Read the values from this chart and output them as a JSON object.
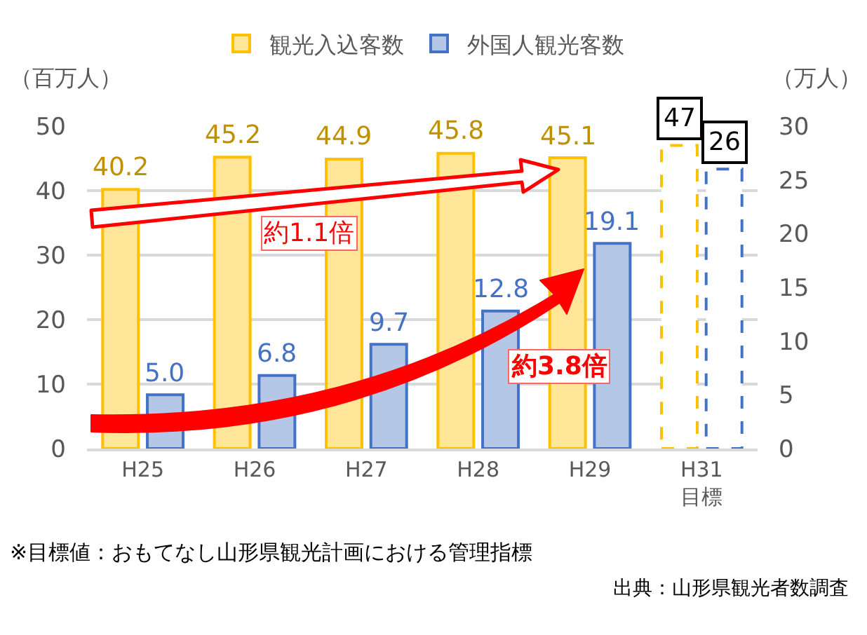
{
  "chart_data": {
    "type": "bar",
    "categories": [
      "H25",
      "H26",
      "H27",
      "H28",
      "H29",
      "H31\n目標"
    ],
    "series": [
      {
        "name": "観光入込客数",
        "colors": [
          "#ffe699",
          "#ffe699",
          "#ffe699",
          "#ffe699",
          "#ffe699",
          "#ffffff"
        ],
        "values": [
          40.2,
          45.2,
          44.9,
          45.8,
          45.1,
          47
        ],
        "value_labels": [
          "40.2",
          "45.2",
          "44.9",
          "45.8",
          "45.1",
          "47"
        ]
      },
      {
        "name": "外国人観光客数",
        "colors": [
          "#b4c7e7",
          "#b4c7e7",
          "#b4c7e7",
          "#b4c7e7",
          "#b4c7e7",
          "#ffffff"
        ],
        "axis": "y2",
        "values": [
          5.0,
          6.8,
          9.7,
          12.8,
          19.1,
          26
        ],
        "value_labels": [
          "5.0",
          "6.8",
          "9.7",
          "12.8",
          "19.1",
          "26"
        ]
      }
    ],
    "ylabel": "（百万人）",
    "y2label": "（万人）",
    "ylim": [
      0,
      50
    ],
    "yticks": [
      0,
      10,
      20,
      30,
      40,
      50
    ],
    "y2lim": [
      0,
      30
    ],
    "y2ticks": [
      0,
      5,
      10,
      15,
      20,
      25,
      30
    ],
    "grid": "y",
    "legend": "top",
    "annotations": [
      "約1.1倍",
      "約3.8倍",
      "※目標値：おもてなし山形県観光計画における管理指標",
      "出典：山形県観光者数調査"
    ]
  }
}
